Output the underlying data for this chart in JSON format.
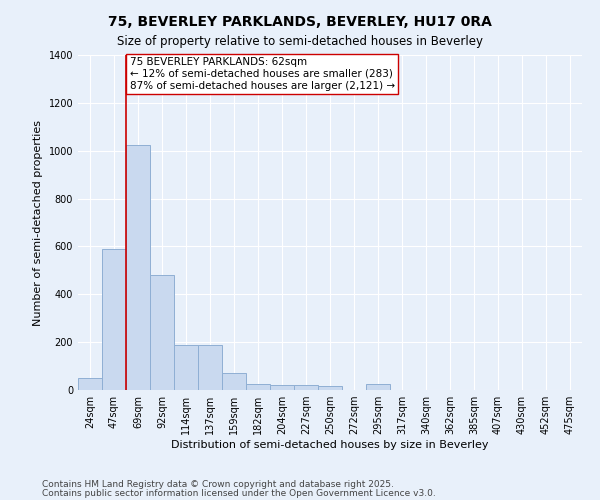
{
  "title_line1": "75, BEVERLEY PARKLANDS, BEVERLEY, HU17 0RA",
  "title_line2": "Size of property relative to semi-detached houses in Beverley",
  "xlabel": "Distribution of semi-detached houses by size in Beverley",
  "ylabel": "Number of semi-detached properties",
  "bin_labels": [
    "24sqm",
    "47sqm",
    "69sqm",
    "92sqm",
    "114sqm",
    "137sqm",
    "159sqm",
    "182sqm",
    "204sqm",
    "227sqm",
    "250sqm",
    "272sqm",
    "295sqm",
    "317sqm",
    "340sqm",
    "362sqm",
    "385sqm",
    "407sqm",
    "430sqm",
    "452sqm",
    "475sqm"
  ],
  "bar_values": [
    50,
    590,
    1025,
    480,
    190,
    190,
    70,
    25,
    20,
    20,
    15,
    0,
    25,
    0,
    0,
    0,
    0,
    0,
    0,
    0,
    0
  ],
  "bar_color": "#c9d9ef",
  "bar_edge_color": "#8fafd4",
  "property_line_color": "#cc0000",
  "annotation_text": "75 BEVERLEY PARKLANDS: 62sqm\n← 12% of semi-detached houses are smaller (283)\n87% of semi-detached houses are larger (2,121) →",
  "annotation_box_color": "#ffffff",
  "annotation_box_edge_color": "#cc0000",
  "ylim": [
    0,
    1400
  ],
  "yticks": [
    0,
    200,
    400,
    600,
    800,
    1000,
    1200,
    1400
  ],
  "background_color": "#e8f0fa",
  "plot_bg_color": "#e8f0fa",
  "footer_line1": "Contains HM Land Registry data © Crown copyright and database right 2025.",
  "footer_line2": "Contains public sector information licensed under the Open Government Licence v3.0.",
  "grid_color": "#ffffff",
  "title_fontsize": 10,
  "subtitle_fontsize": 8.5,
  "axis_label_fontsize": 8,
  "tick_fontsize": 7,
  "annotation_fontsize": 7.5,
  "footer_fontsize": 6.5
}
